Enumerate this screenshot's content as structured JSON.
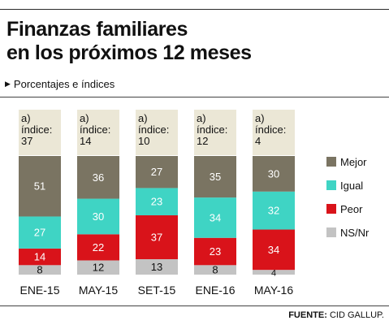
{
  "title_line1": "Finanzas familiares",
  "title_line2": "en los próximos 12 meses",
  "subtitle": "Porcentajes e índices",
  "subtitle_icon": "triangle-right-icon",
  "source_label": "FUENTE:",
  "source_value": "CID GALLUP.",
  "colors": {
    "mejor": "#7a7462",
    "igual": "#3fd4c4",
    "peor": "#d9131a",
    "nsnr": "#c3c3c3",
    "header": "#ebe7d6"
  },
  "chart_data": {
    "type": "bar",
    "stacked": true,
    "categories": [
      "ENE-15",
      "MAY-15",
      "SET-15",
      "ENE-16",
      "MAY-16"
    ],
    "header_labels": [
      [
        "a)",
        "índice:",
        "37"
      ],
      [
        "a)",
        "índice:",
        "14"
      ],
      [
        "a)",
        "índice:",
        "10"
      ],
      [
        "a)",
        "índice:",
        "12"
      ],
      [
        "a)",
        "índice:",
        "4"
      ]
    ],
    "series": [
      {
        "name": "NS/Nr",
        "key": "nsnr",
        "values": [
          8,
          12,
          13,
          8,
          4
        ]
      },
      {
        "name": "Peor",
        "key": "peor",
        "values": [
          14,
          22,
          37,
          23,
          34
        ]
      },
      {
        "name": "Igual",
        "key": "igual",
        "values": [
          27,
          30,
          23,
          34,
          32
        ]
      },
      {
        "name": "Mejor",
        "key": "mejor",
        "values": [
          51,
          36,
          27,
          35,
          30
        ]
      }
    ],
    "legend": [
      "Mejor",
      "Igual",
      "Peor",
      "NS/Nr"
    ],
    "legend_position": "right",
    "ylim": [
      0,
      100
    ],
    "grid": false
  }
}
